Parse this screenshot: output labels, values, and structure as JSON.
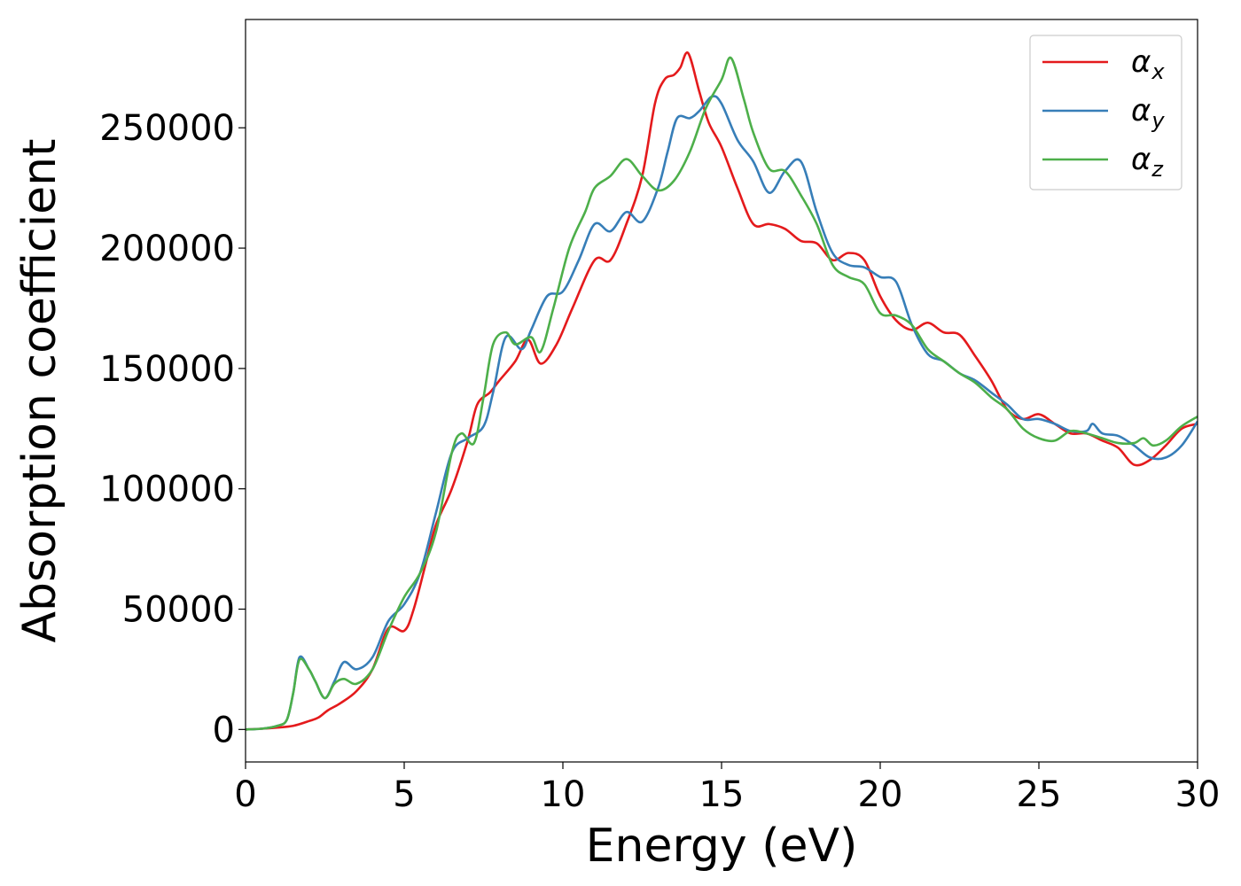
{
  "chart_data": {
    "type": "line",
    "xlabel": "Energy (eV)",
    "ylabel": "Absorption coefficient",
    "xlim": [
      0,
      30
    ],
    "ylim": [
      -13500,
      295000
    ],
    "xticks": [
      0,
      5,
      10,
      15,
      20,
      25,
      30
    ],
    "xtick_labels": [
      "0",
      "5",
      "10",
      "15",
      "20",
      "25",
      "30"
    ],
    "yticks": [
      0,
      50000,
      100000,
      150000,
      200000,
      250000
    ],
    "ytick_labels": [
      "0",
      "50000",
      "100000",
      "150000",
      "200000",
      "250000"
    ],
    "grid": false,
    "legend_position": "top-right",
    "series": [
      {
        "name": "α",
        "subscript": "x",
        "color": "#e41a1c",
        "points": [
          [
            0,
            0
          ],
          [
            0.5,
            300
          ],
          [
            1,
            800
          ],
          [
            1.5,
            1500
          ],
          [
            2,
            3500
          ],
          [
            2.3,
            5000
          ],
          [
            2.6,
            8000
          ],
          [
            3,
            11000
          ],
          [
            3.5,
            16000
          ],
          [
            4,
            25000
          ],
          [
            4.5,
            42000
          ],
          [
            5,
            41000
          ],
          [
            5.3,
            50000
          ],
          [
            5.7,
            70000
          ],
          [
            6,
            85000
          ],
          [
            6.5,
            100000
          ],
          [
            7,
            120000
          ],
          [
            7.3,
            135000
          ],
          [
            7.7,
            140000
          ],
          [
            8,
            145000
          ],
          [
            8.5,
            153000
          ],
          [
            8.9,
            162000
          ],
          [
            9.3,
            152000
          ],
          [
            9.8,
            160000
          ],
          [
            10.3,
            175000
          ],
          [
            11,
            195000
          ],
          [
            11.5,
            195000
          ],
          [
            12,
            210000
          ],
          [
            12.5,
            230000
          ],
          [
            12.9,
            260000
          ],
          [
            13.2,
            270000
          ],
          [
            13.5,
            272000
          ],
          [
            13.7,
            275000
          ],
          [
            13.95,
            281000
          ],
          [
            14.3,
            265000
          ],
          [
            14.6,
            252000
          ],
          [
            15,
            242000
          ],
          [
            15.5,
            225000
          ],
          [
            16,
            210000
          ],
          [
            16.5,
            210000
          ],
          [
            17,
            208000
          ],
          [
            17.5,
            203000
          ],
          [
            18,
            202000
          ],
          [
            18.5,
            195000
          ],
          [
            19,
            198000
          ],
          [
            19.5,
            195000
          ],
          [
            20,
            180000
          ],
          [
            20.5,
            170000
          ],
          [
            21,
            166000
          ],
          [
            21.5,
            169000
          ],
          [
            22,
            165000
          ],
          [
            22.5,
            164000
          ],
          [
            23,
            155000
          ],
          [
            23.5,
            145000
          ],
          [
            24,
            133000
          ],
          [
            24.5,
            129000
          ],
          [
            25,
            131000
          ],
          [
            25.5,
            127000
          ],
          [
            26,
            123000
          ],
          [
            26.5,
            123000
          ],
          [
            27,
            120000
          ],
          [
            27.5,
            117000
          ],
          [
            28,
            110000
          ],
          [
            28.5,
            112000
          ],
          [
            29,
            118000
          ],
          [
            29.5,
            125000
          ],
          [
            30,
            127000
          ]
        ]
      },
      {
        "name": "α",
        "subscript": "y",
        "color": "#377eb8",
        "points": [
          [
            0,
            0
          ],
          [
            0.5,
            300
          ],
          [
            1,
            1500
          ],
          [
            1.3,
            4000
          ],
          [
            1.5,
            15000
          ],
          [
            1.7,
            30000
          ],
          [
            2,
            25000
          ],
          [
            2.2,
            20000
          ],
          [
            2.5,
            13000
          ],
          [
            2.8,
            20000
          ],
          [
            3.1,
            28000
          ],
          [
            3.5,
            25000
          ],
          [
            4,
            30000
          ],
          [
            4.5,
            45000
          ],
          [
            5,
            52000
          ],
          [
            5.5,
            65000
          ],
          [
            6,
            90000
          ],
          [
            6.5,
            115000
          ],
          [
            7,
            121000
          ],
          [
            7.5,
            126000
          ],
          [
            7.8,
            140000
          ],
          [
            8.2,
            163000
          ],
          [
            8.7,
            158000
          ],
          [
            9,
            166000
          ],
          [
            9.5,
            180000
          ],
          [
            10,
            182000
          ],
          [
            10.5,
            195000
          ],
          [
            11,
            210000
          ],
          [
            11.5,
            207000
          ],
          [
            12,
            215000
          ],
          [
            12.5,
            211000
          ],
          [
            13,
            225000
          ],
          [
            13.3,
            240000
          ],
          [
            13.6,
            254000
          ],
          [
            14,
            254000
          ],
          [
            14.3,
            257000
          ],
          [
            14.7,
            263000
          ],
          [
            15,
            260000
          ],
          [
            15.5,
            245000
          ],
          [
            16,
            236000
          ],
          [
            16.5,
            223000
          ],
          [
            17,
            232000
          ],
          [
            17.5,
            236000
          ],
          [
            18,
            215000
          ],
          [
            18.5,
            198000
          ],
          [
            19,
            193000
          ],
          [
            19.5,
            192000
          ],
          [
            20,
            188000
          ],
          [
            20.5,
            186000
          ],
          [
            21,
            168000
          ],
          [
            21.5,
            156000
          ],
          [
            22,
            153000
          ],
          [
            22.5,
            148000
          ],
          [
            23,
            145000
          ],
          [
            23.5,
            140000
          ],
          [
            24,
            135000
          ],
          [
            24.5,
            129000
          ],
          [
            25,
            129000
          ],
          [
            25.5,
            127000
          ],
          [
            26,
            124000
          ],
          [
            26.5,
            124000
          ],
          [
            26.7,
            127000
          ],
          [
            27,
            123000
          ],
          [
            27.5,
            122000
          ],
          [
            28,
            118000
          ],
          [
            28.5,
            113000
          ],
          [
            29,
            113000
          ],
          [
            29.5,
            118000
          ],
          [
            30,
            128000
          ]
        ]
      },
      {
        "name": "α",
        "subscript": "z",
        "color": "#4daf4a",
        "points": [
          [
            0,
            0
          ],
          [
            0.5,
            300
          ],
          [
            1,
            1500
          ],
          [
            1.3,
            4000
          ],
          [
            1.5,
            15000
          ],
          [
            1.7,
            29000
          ],
          [
            2,
            25000
          ],
          [
            2.2,
            20000
          ],
          [
            2.5,
            13000
          ],
          [
            2.8,
            19000
          ],
          [
            3.1,
            21000
          ],
          [
            3.5,
            19000
          ],
          [
            4,
            25000
          ],
          [
            4.5,
            41000
          ],
          [
            5,
            55000
          ],
          [
            5.5,
            65000
          ],
          [
            6,
            82000
          ],
          [
            6.5,
            115000
          ],
          [
            6.8,
            123000
          ],
          [
            7.2,
            119000
          ],
          [
            7.5,
            138000
          ],
          [
            7.8,
            160000
          ],
          [
            8.2,
            165000
          ],
          [
            8.5,
            160000
          ],
          [
            9,
            163000
          ],
          [
            9.3,
            157000
          ],
          [
            9.7,
            175000
          ],
          [
            10.2,
            200000
          ],
          [
            10.7,
            215000
          ],
          [
            11,
            225000
          ],
          [
            11.5,
            230000
          ],
          [
            12,
            237000
          ],
          [
            12.5,
            230000
          ],
          [
            13,
            224000
          ],
          [
            13.5,
            228000
          ],
          [
            14,
            240000
          ],
          [
            14.5,
            258000
          ],
          [
            15,
            270000
          ],
          [
            15.3,
            279000
          ],
          [
            15.7,
            262000
          ],
          [
            16,
            248000
          ],
          [
            16.5,
            233000
          ],
          [
            17,
            232000
          ],
          [
            17.5,
            222000
          ],
          [
            18,
            210000
          ],
          [
            18.5,
            193000
          ],
          [
            19,
            188000
          ],
          [
            19.5,
            185000
          ],
          [
            20,
            173000
          ],
          [
            20.5,
            172000
          ],
          [
            21,
            168000
          ],
          [
            21.5,
            158000
          ],
          [
            22,
            153000
          ],
          [
            22.5,
            148000
          ],
          [
            23,
            144000
          ],
          [
            23.5,
            138000
          ],
          [
            24,
            133000
          ],
          [
            24.5,
            125000
          ],
          [
            25,
            121000
          ],
          [
            25.5,
            120000
          ],
          [
            26,
            124000
          ],
          [
            26.5,
            123000
          ],
          [
            27,
            121000
          ],
          [
            27.5,
            119000
          ],
          [
            28,
            119000
          ],
          [
            28.3,
            121000
          ],
          [
            28.6,
            118000
          ],
          [
            29,
            120000
          ],
          [
            29.5,
            126000
          ],
          [
            30,
            130000
          ]
        ]
      }
    ]
  }
}
